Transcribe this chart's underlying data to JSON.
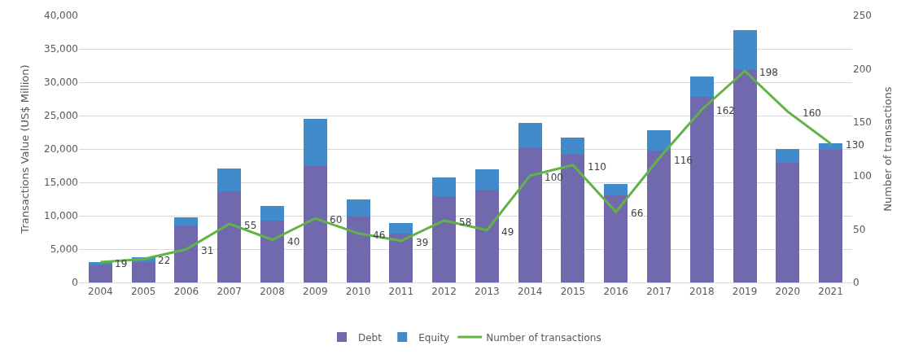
{
  "chart_data": {
    "type": "bar",
    "stacked": true,
    "ylabel": "Transactions Value (US$ Million)",
    "y2label": "Number of transactions",
    "categories": [
      "2004",
      "2005",
      "2006",
      "2007",
      "2008",
      "2009",
      "2010",
      "2011",
      "2012",
      "2013",
      "2014",
      "2015",
      "2016",
      "2017",
      "2018",
      "2019",
      "2020",
      "2021"
    ],
    "series": [
      {
        "name": "Debt",
        "color": "#7169ae",
        "values": [
          2700,
          3050,
          8550,
          13700,
          9300,
          17400,
          9850,
          7300,
          12950,
          13900,
          20300,
          19100,
          13050,
          19700,
          27750,
          31800,
          17900,
          19850
        ]
      },
      {
        "name": "Equity",
        "color": "#428bca",
        "values": [
          400,
          750,
          1250,
          3350,
          2200,
          7100,
          2550,
          1550,
          2800,
          3000,
          3600,
          2550,
          1650,
          3100,
          3050,
          6000,
          2150,
          1000
        ]
      },
      {
        "name": "Number of transactions",
        "type": "line",
        "axis": "y2",
        "color": "#62b346",
        "marker": "none",
        "values": [
          19,
          22,
          31,
          55,
          40,
          60,
          46,
          39,
          58,
          49,
          100,
          110,
          66,
          116,
          162,
          198,
          160,
          130
        ],
        "value_labels": [
          "19",
          "22",
          "31",
          "55",
          "40",
          "60",
          "46",
          "39",
          "58",
          "49",
          "100",
          "110",
          "66",
          "116",
          "162",
          "198",
          "160",
          "130"
        ]
      }
    ],
    "ylim": [
      0,
      40000
    ],
    "yticks": [
      {
        "value": 0,
        "label": "0"
      },
      {
        "value": 5000,
        "label": "5,000"
      },
      {
        "value": 10000,
        "label": "10,000"
      },
      {
        "value": 15000,
        "label": "15,000"
      },
      {
        "value": 20000,
        "label": "20,000"
      },
      {
        "value": 25000,
        "label": "25,000"
      },
      {
        "value": 30000,
        "label": "30,000"
      },
      {
        "value": 35000,
        "label": "35,000"
      },
      {
        "value": 40000,
        "label": "40,000"
      }
    ],
    "y2lim": [
      0,
      250
    ],
    "y2ticks": [
      0,
      50,
      100,
      150,
      200,
      250
    ],
    "grid": "y",
    "legend": "bottom"
  }
}
